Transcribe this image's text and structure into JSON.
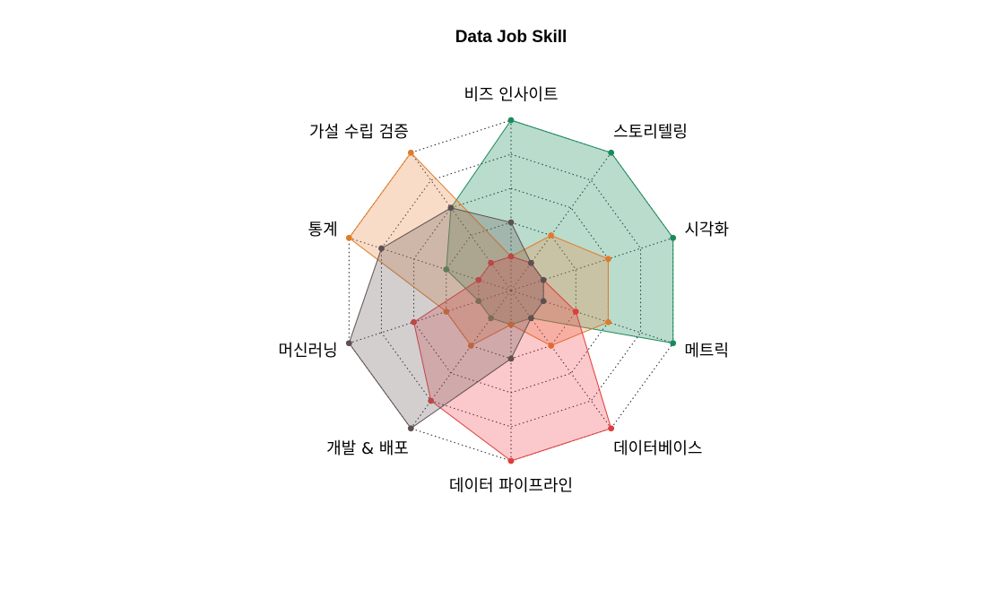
{
  "chart_data": {
    "type": "radar",
    "title": "Data Job Skill",
    "axes": [
      "비즈 인사이트",
      "스토리텔링",
      "시각화",
      "메트릭",
      "데이터베이스",
      "데이터 파이프라인",
      "개발 & 배포",
      "머신러닝",
      "통계",
      "가설 수립 검증"
    ],
    "rlim": [
      0,
      5
    ],
    "levels": [
      1,
      2,
      3,
      4,
      5
    ],
    "grid": true,
    "legend": "none",
    "series": [
      {
        "color": "#1b8a5a",
        "fill": "rgba(27,138,90,0.30)",
        "values": [
          5,
          5,
          5,
          5,
          1,
          1,
          1,
          1,
          2,
          3
        ]
      },
      {
        "color": "#e07b28",
        "fill": "rgba(232,140,70,0.30)",
        "values": [
          1,
          2,
          3,
          3,
          2,
          1,
          2,
          2,
          5,
          5
        ]
      },
      {
        "color": "#e03c3c",
        "fill": "rgba(240,60,70,0.28)",
        "values": [
          1,
          1,
          1,
          2,
          5,
          5,
          4,
          3,
          1,
          1
        ]
      },
      {
        "color": "#5e5050",
        "fill": "rgba(110,95,95,0.30)",
        "values": [
          2,
          1,
          1,
          1,
          1,
          2,
          5,
          5,
          4,
          3
        ]
      }
    ]
  }
}
